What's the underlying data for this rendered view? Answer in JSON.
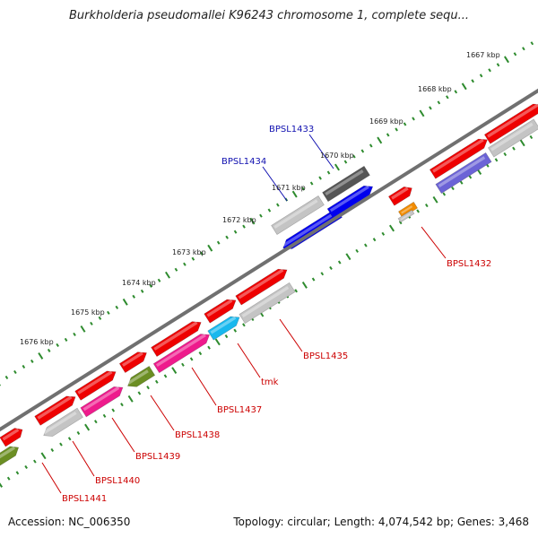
{
  "title": "Burkholderia pseudomallei K96243 chromosome 1, complete sequ...",
  "footer": {
    "accession": "Accession: NC_006350",
    "summary": "Topology: circular; Length: 4,074,542 bp; Genes: 3,468"
  },
  "colors": {
    "backbone": "#707070",
    "tick": "#2e8b2e",
    "label_upper": "#1010b0",
    "label_lower": "#cc0000",
    "red": "#ee0000",
    "grey": "#c4c4c4",
    "dark_grey": "#555555",
    "blue": "#0000ee",
    "purple": "#6b63d6",
    "orange": "#f28c00",
    "pink": "#ee1b8c",
    "cyan": "#18b8ee",
    "olive": "#6b8e23"
  },
  "scale_labels": [
    "1667 kbp",
    "1668 kbp",
    "1669 kbp",
    "1670 kbp",
    "1671 kbp",
    "1672 kbp",
    "1673 kbp",
    "1674 kbp",
    "1675 kbp",
    "1676 kbp"
  ],
  "gene_labels": [
    {
      "text": "BPSL1433",
      "side": "upper"
    },
    {
      "text": "BPSL1434",
      "side": "upper"
    },
    {
      "text": "BPSL1432",
      "side": "lower"
    },
    {
      "text": "BPSL1435",
      "side": "lower"
    },
    {
      "text": "tmk",
      "side": "lower"
    },
    {
      "text": "BPSL1437",
      "side": "lower"
    },
    {
      "text": "BPSL1438",
      "side": "lower"
    },
    {
      "text": "BPSL1439",
      "side": "lower"
    },
    {
      "text": "BPSL1440",
      "side": "lower"
    },
    {
      "text": "BPSL1441",
      "side": "lower"
    }
  ]
}
